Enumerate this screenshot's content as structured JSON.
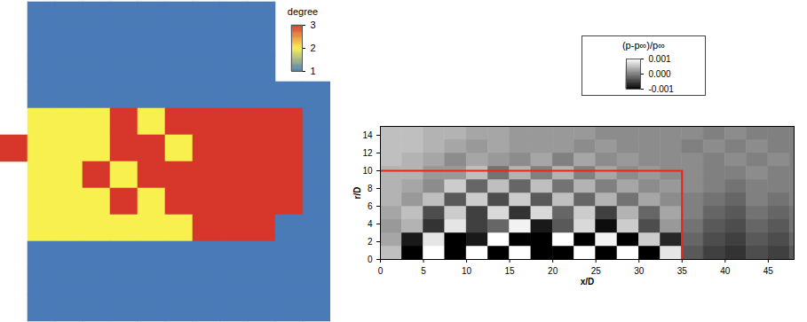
{
  "chart_data": [
    {
      "type": "heatmap",
      "tick_labels": false,
      "colorbar": {
        "title": "degree",
        "range": [
          1,
          3
        ],
        "ticks": [
          1,
          2,
          3
        ],
        "colors": [
          "#4a7bb7",
          "#f8f04e",
          "#d7372b"
        ]
      },
      "cells": [
        [
          null,
          1,
          1,
          1,
          1,
          1,
          1,
          1,
          1,
          1,
          null,
          null
        ],
        [
          null,
          1,
          1,
          1,
          1,
          1,
          1,
          1,
          1,
          1,
          null,
          null
        ],
        [
          null,
          1,
          1,
          1,
          1,
          1,
          1,
          1,
          1,
          1,
          null,
          null
        ],
        [
          null,
          1,
          1,
          1,
          1,
          1,
          1,
          1,
          1,
          1,
          1,
          1
        ],
        [
          null,
          2,
          2,
          2,
          3,
          2,
          3,
          3,
          3,
          3,
          3,
          1
        ],
        [
          3,
          2,
          2,
          2,
          3,
          3,
          2,
          3,
          3,
          3,
          3,
          1
        ],
        [
          null,
          2,
          2,
          3,
          2,
          3,
          3,
          3,
          3,
          3,
          3,
          1
        ],
        [
          null,
          2,
          2,
          2,
          3,
          2,
          3,
          3,
          3,
          3,
          3,
          1
        ],
        [
          null,
          2,
          2,
          2,
          2,
          2,
          2,
          3,
          3,
          3,
          1,
          1
        ],
        [
          null,
          1,
          1,
          1,
          1,
          1,
          1,
          1,
          1,
          1,
          1,
          1
        ],
        [
          null,
          1,
          1,
          1,
          1,
          1,
          1,
          1,
          1,
          1,
          1,
          1
        ],
        [
          null,
          1,
          1,
          1,
          1,
          1,
          1,
          1,
          1,
          1,
          1,
          1
        ]
      ]
    },
    {
      "type": "heatmap",
      "xlabel": "x/D",
      "ylabel": "r/D",
      "xlim": [
        0,
        48
      ],
      "ylim": [
        0,
        15
      ],
      "xticks": [
        0,
        5,
        10,
        15,
        20,
        25,
        30,
        35,
        40,
        45
      ],
      "yticks": [
        0,
        2,
        4,
        6,
        8,
        10,
        12,
        14
      ],
      "colorbar": {
        "title": "(p-p∞)/p∞",
        "range": [
          -0.001,
          0.001
        ],
        "ticks": [
          0.001,
          {
            "value": 0,
            "label": "0.000"
          },
          -0.001
        ],
        "colors": [
          "#000000",
          "#ffffff"
        ]
      },
      "x_bins": [
        0,
        2.5,
        5,
        7.5,
        10,
        12.5,
        15,
        17.5,
        20,
        22.5,
        25,
        27.5,
        30,
        32.5,
        35,
        37.5,
        40,
        42.5,
        45,
        47.5,
        50
      ],
      "y_bins": [
        0,
        1.5,
        3,
        4.5,
        6,
        7.5,
        9,
        10.5,
        12,
        13.5,
        15
      ],
      "cells": [
        [
          0.0005,
          -0.001,
          0.001,
          -0.001,
          0.001,
          -0.001,
          0.001,
          -0.001,
          -0.001,
          0.001,
          -0.001,
          0.001,
          -0.001,
          0.0008,
          -0.0003,
          -0.0005,
          -0.0006,
          -0.0004,
          -0.0005,
          -0.0003
        ],
        [
          0.0003,
          -0.0008,
          0.0008,
          -0.001,
          -0.0008,
          0.001,
          -0.001,
          -0.001,
          0.001,
          -0.001,
          0.0009,
          -0.001,
          0.0006,
          -0.0007,
          -0.0002,
          -0.0004,
          -0.0005,
          -0.0003,
          -0.0004,
          -0.0002
        ],
        [
          0.0002,
          0.0004,
          -0.0006,
          0.0008,
          -0.0005,
          -0.0002,
          0.0009,
          -0.0008,
          -0.0003,
          0.0007,
          -0.0009,
          0.0006,
          -0.0004,
          0.0002,
          -0.0001,
          -0.0003,
          -0.0004,
          -0.0002,
          -0.0003,
          -0.0001
        ],
        [
          0.0003,
          0.0005,
          -0.0004,
          0.0006,
          -0.0005,
          0.0007,
          -0.0006,
          0.0007,
          -0.0002,
          0.0006,
          -0.0005,
          0.0004,
          -0.0002,
          0.0003,
          0,
          -0.0002,
          -0.0003,
          -0.0001,
          -0.0002,
          -0.0001
        ],
        [
          0.0004,
          0.0002,
          0.0005,
          -0.0003,
          0.0006,
          -0.0004,
          0.0006,
          -0.0003,
          0.0005,
          -0.0002,
          0.0004,
          -0.0001,
          0.0003,
          0.0001,
          0,
          -0.0001,
          -0.0002,
          0,
          -0.0001,
          0
        ],
        [
          0.0004,
          0.0003,
          0.0001,
          0.0006,
          -0.0002,
          0.0005,
          -0.0002,
          0.0005,
          -0.0001,
          0.0004,
          0,
          0.0003,
          0.0001,
          0.0002,
          0.0001,
          0,
          -0.0001,
          0,
          0,
          0
        ],
        [
          0.0004,
          0.0004,
          0.0002,
          0.0002,
          0.0005,
          -0.0001,
          0.0004,
          0,
          0.0004,
          0,
          0.0003,
          0.0001,
          0.0002,
          0.0001,
          0.0001,
          0,
          0,
          0.0001,
          0,
          0
        ],
        [
          0.0005,
          0.0004,
          0.0003,
          0.0001,
          0.0003,
          0.0002,
          0.0001,
          0.0003,
          0,
          0.0003,
          0.0001,
          0.0002,
          0.0001,
          0.0001,
          0.0001,
          0,
          0.0001,
          0,
          0.0001,
          0
        ],
        [
          0.0005,
          0.0005,
          0.0004,
          0.0003,
          0.0002,
          0.0003,
          0.0002,
          0.0002,
          0.0002,
          0.0001,
          0.0002,
          0.0001,
          0.0001,
          0.0001,
          0,
          0.0001,
          0,
          0.0001,
          0,
          0
        ],
        [
          0.0005,
          0.0005,
          0.0004,
          0.0004,
          0.0003,
          0.0003,
          0.0002,
          0.0002,
          0.0002,
          0.0002,
          0.0001,
          0.0001,
          0.0001,
          0.0001,
          0.0001,
          0,
          0.0001,
          0,
          0,
          0
        ]
      ],
      "series": [
        {
          "type": "line",
          "color": "#e8251f",
          "x": [
            0,
            35,
            35
          ],
          "y": [
            10,
            10,
            0
          ]
        }
      ]
    }
  ]
}
